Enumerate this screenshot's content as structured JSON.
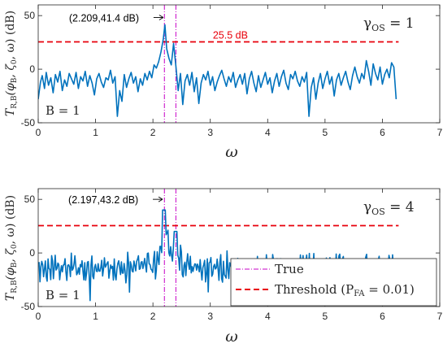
{
  "chart_data": [
    {
      "type": "line",
      "xlabel": "ω",
      "ylabel": "T_R,B(φ_B, ζ_0, ω) (dB)",
      "xlim": [
        0,
        7
      ],
      "ylim": [
        -50,
        60
      ],
      "xticks": [
        "0",
        "1",
        "2",
        "3",
        "4",
        "5",
        "6",
        "7"
      ],
      "yticks": [
        "-50",
        "0",
        "50"
      ],
      "grid": false,
      "gamma_label": "γ_OS = 1",
      "b_label": "B = 1",
      "peak_annotation": "(2.209,41.4 dB)",
      "peak": {
        "x": 2.209,
        "y": 41.4
      },
      "threshold": {
        "y": 25.5,
        "label": "25.5 dB",
        "x_range": [
          0,
          6.283
        ]
      },
      "true_lines": [
        2.2,
        2.4
      ],
      "series": [
        {
          "color": "#0072bd",
          "x": [
            0.0,
            0.04,
            0.07,
            0.11,
            0.14,
            0.18,
            0.22,
            0.26,
            0.3,
            0.34,
            0.38,
            0.42,
            0.46,
            0.5,
            0.54,
            0.58,
            0.62,
            0.66,
            0.7,
            0.74,
            0.78,
            0.82,
            0.86,
            0.9,
            0.94,
            0.98,
            1.02,
            1.06,
            1.1,
            1.14,
            1.18,
            1.22,
            1.26,
            1.3,
            1.34,
            1.38,
            1.42,
            1.46,
            1.5,
            1.54,
            1.58,
            1.62,
            1.66,
            1.7,
            1.74,
            1.78,
            1.82,
            1.86,
            1.9,
            1.94,
            1.98,
            2.02,
            2.06,
            2.1,
            2.14,
            2.18,
            2.209,
            2.24,
            2.28,
            2.32,
            2.36,
            2.4,
            2.44,
            2.48,
            2.52,
            2.56,
            2.6,
            2.64,
            2.68,
            2.72,
            2.76,
            2.8,
            2.84,
            2.88,
            2.92,
            2.96,
            3.0,
            3.04,
            3.08,
            3.12,
            3.16,
            3.2,
            3.24,
            3.28,
            3.32,
            3.36,
            3.4,
            3.44,
            3.48,
            3.52,
            3.56,
            3.6,
            3.64,
            3.68,
            3.72,
            3.76,
            3.8,
            3.84,
            3.88,
            3.92,
            3.96,
            4.0,
            4.04,
            4.08,
            4.12,
            4.16,
            4.2,
            4.24,
            4.28,
            4.32,
            4.36,
            4.4,
            4.44,
            4.48,
            4.52,
            4.56,
            4.6,
            4.64,
            4.68,
            4.72,
            4.76,
            4.8,
            4.84,
            4.88,
            4.92,
            4.96,
            5.0,
            5.04,
            5.08,
            5.12,
            5.16,
            5.2,
            5.24,
            5.28,
            5.32,
            5.36,
            5.4,
            5.44,
            5.48,
            5.52,
            5.56,
            5.6,
            5.64,
            5.68,
            5.72,
            5.76,
            5.8,
            5.84,
            5.88,
            5.92,
            5.96,
            6.0,
            6.04,
            6.08,
            6.12,
            6.16,
            6.2,
            6.24
          ],
          "values": [
            -28,
            -12,
            -6,
            -18,
            -3,
            -15,
            -8,
            -22,
            -5,
            -12,
            -2,
            -20,
            -10,
            -16,
            -4,
            -9,
            -14,
            -3,
            -18,
            -7,
            -11,
            -2,
            -16,
            -6,
            -13,
            -24,
            -9,
            -4,
            -12,
            -17,
            -8,
            -10,
            -1,
            -13,
            -7,
            -44,
            -20,
            -30,
            -5,
            -17,
            -9,
            -3,
            -13,
            -7,
            -21,
            -9,
            -15,
            -4,
            -10,
            -2,
            -8,
            4,
            1,
            7,
            16,
            28,
            41.4,
            19,
            10,
            4,
            24,
            3,
            -20,
            -4,
            -33,
            -11,
            -5,
            -15,
            -3,
            -21,
            -8,
            -32,
            -13,
            -5,
            -10,
            -2,
            -15,
            -7,
            -20,
            -12,
            -6,
            -1,
            -9,
            -16,
            -7,
            -12,
            -3,
            -17,
            -10,
            -5,
            -14,
            -4,
            -23,
            -9,
            -2,
            -13,
            -21,
            -6,
            -17,
            -10,
            -3,
            -14,
            -8,
            -22,
            -11,
            -4,
            -16,
            -7,
            -1,
            -13,
            -19,
            -5,
            -9,
            -2,
            -11,
            -16,
            -7,
            -12,
            -3,
            -44,
            -17,
            -8,
            -28,
            -13,
            -4,
            -18,
            -9,
            -2,
            -14,
            -7,
            -25,
            -10,
            -4,
            -15,
            -8,
            -2,
            -12,
            -19,
            -6,
            2,
            -7,
            -13,
            -4,
            -9,
            8,
            -2,
            -15,
            5,
            -4,
            -10,
            2,
            -14,
            -5,
            0,
            -8,
            6,
            2,
            -28
          ]
        }
      ]
    },
    {
      "type": "line",
      "xlabel": "ω",
      "ylabel": "T_R,B(φ_B, ζ_0, ω) (dB)",
      "xlim": [
        0,
        7
      ],
      "ylim": [
        -50,
        60
      ],
      "xticks": [
        "0",
        "1",
        "2",
        "3",
        "4",
        "5",
        "6",
        "7"
      ],
      "yticks": [
        "-50",
        "0",
        "50"
      ],
      "grid": false,
      "gamma_label": "γ_OS = 4",
      "b_label": "B = 1",
      "peak_annotation": "(2.197,43.2 dB)",
      "peak": {
        "x": 2.197,
        "y": 43.2
      },
      "threshold": {
        "y": 25.5,
        "x_range": [
          0,
          6.283
        ]
      },
      "true_lines": [
        2.2,
        2.4
      ],
      "legend": {
        "placement": "bottom-right",
        "entries": [
          "True",
          "Threshold (P_FA = 0.01)"
        ]
      },
      "series": [
        {
          "color": "#0072bd",
          "seed": 4
        }
      ]
    }
  ],
  "text": {
    "ylabel_main": "T",
    "ylabel_sub": "R,B",
    "ylabel_phi": "(φ",
    "ylabel_phi_sub": "B",
    "ylabel_rest": ", ζ",
    "ylabel_zeta_sub": "0",
    "ylabel_end": ", ω) (dB)",
    "xlabel": "ω",
    "gamma1": "γ",
    "gamma1_sub": "OS",
    "gamma1_val": " = 1",
    "gamma4": "γ",
    "gamma4_sub": "OS",
    "gamma4_val": " = 4",
    "b1": "B = 1",
    "b2": "B = 1",
    "legend_true": "True",
    "legend_thr_a": "Threshold (P",
    "legend_thr_sub": "FA",
    "legend_thr_b": " = 0.01)"
  },
  "colors": {
    "series": "#0072bd",
    "threshold": "#e8000b",
    "true_line": "#c700c7",
    "axis": "#262626"
  }
}
